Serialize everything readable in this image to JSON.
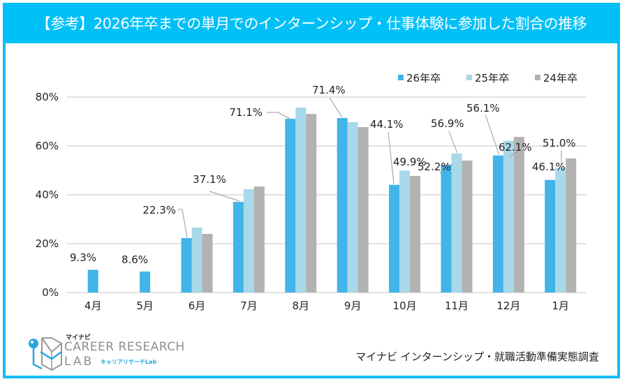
{
  "title": "【参考】2026年卒までの単月でのインターンシップ・仕事体験に参加した割合の推移",
  "source": "マイナビ インターンシップ・就職活動準備実態調査",
  "logo": {
    "brand_small": "マイナビ",
    "line1": "CAREER RESEARCH",
    "line2": "LAB",
    "subtitle": "キャリアリサーチLab"
  },
  "colors": {
    "header": "#00c0f7",
    "frame": "#14bdf5",
    "series_26": "#41b4e8",
    "series_25": "#a8d8ea",
    "series_24": "#b2b2b2",
    "grid": "#d9d9d9",
    "leader": "#9a9a9a"
  },
  "chart_data": {
    "type": "bar",
    "title": "【参考】2026年卒までの単月でのインターンシップ・仕事体験に参加した割合の推移",
    "xlabel": "",
    "ylabel": "",
    "categories": [
      "4月",
      "5月",
      "6月",
      "7月",
      "8月",
      "9月",
      "10月",
      "11月",
      "12月",
      "1月"
    ],
    "ylim": [
      0,
      80
    ],
    "yticks": [
      0,
      20,
      40,
      60,
      80
    ],
    "ytick_labels": [
      "0%",
      "20%",
      "40%",
      "60%",
      "80%"
    ],
    "grid": true,
    "legend_position": "top-right",
    "series": [
      {
        "name": "26年卒",
        "values": [
          9.3,
          8.6,
          22.3,
          37.1,
          71.1,
          71.4,
          44.1,
          52.2,
          56.1,
          46.1
        ],
        "labels": [
          "9.3%",
          "8.6%",
          "22.3%",
          "37.1%",
          "71.1%",
          "71.4%",
          "44.1%",
          "52.2%",
          "56.1%",
          "46.1%"
        ]
      },
      {
        "name": "25年卒",
        "values": [
          null,
          null,
          26.6,
          42.3,
          75.7,
          69.7,
          49.9,
          56.9,
          62.1,
          51.0
        ],
        "labels": [
          null,
          null,
          null,
          null,
          null,
          null,
          "49.9%",
          "56.9%",
          "62.1%",
          "51.0%"
        ]
      },
      {
        "name": "24年卒",
        "values": [
          null,
          null,
          24.0,
          43.4,
          73.1,
          67.7,
          47.7,
          54.0,
          63.7,
          54.9
        ],
        "labels": [
          null,
          null,
          null,
          null,
          null,
          null,
          null,
          null,
          null,
          null
        ]
      }
    ]
  }
}
